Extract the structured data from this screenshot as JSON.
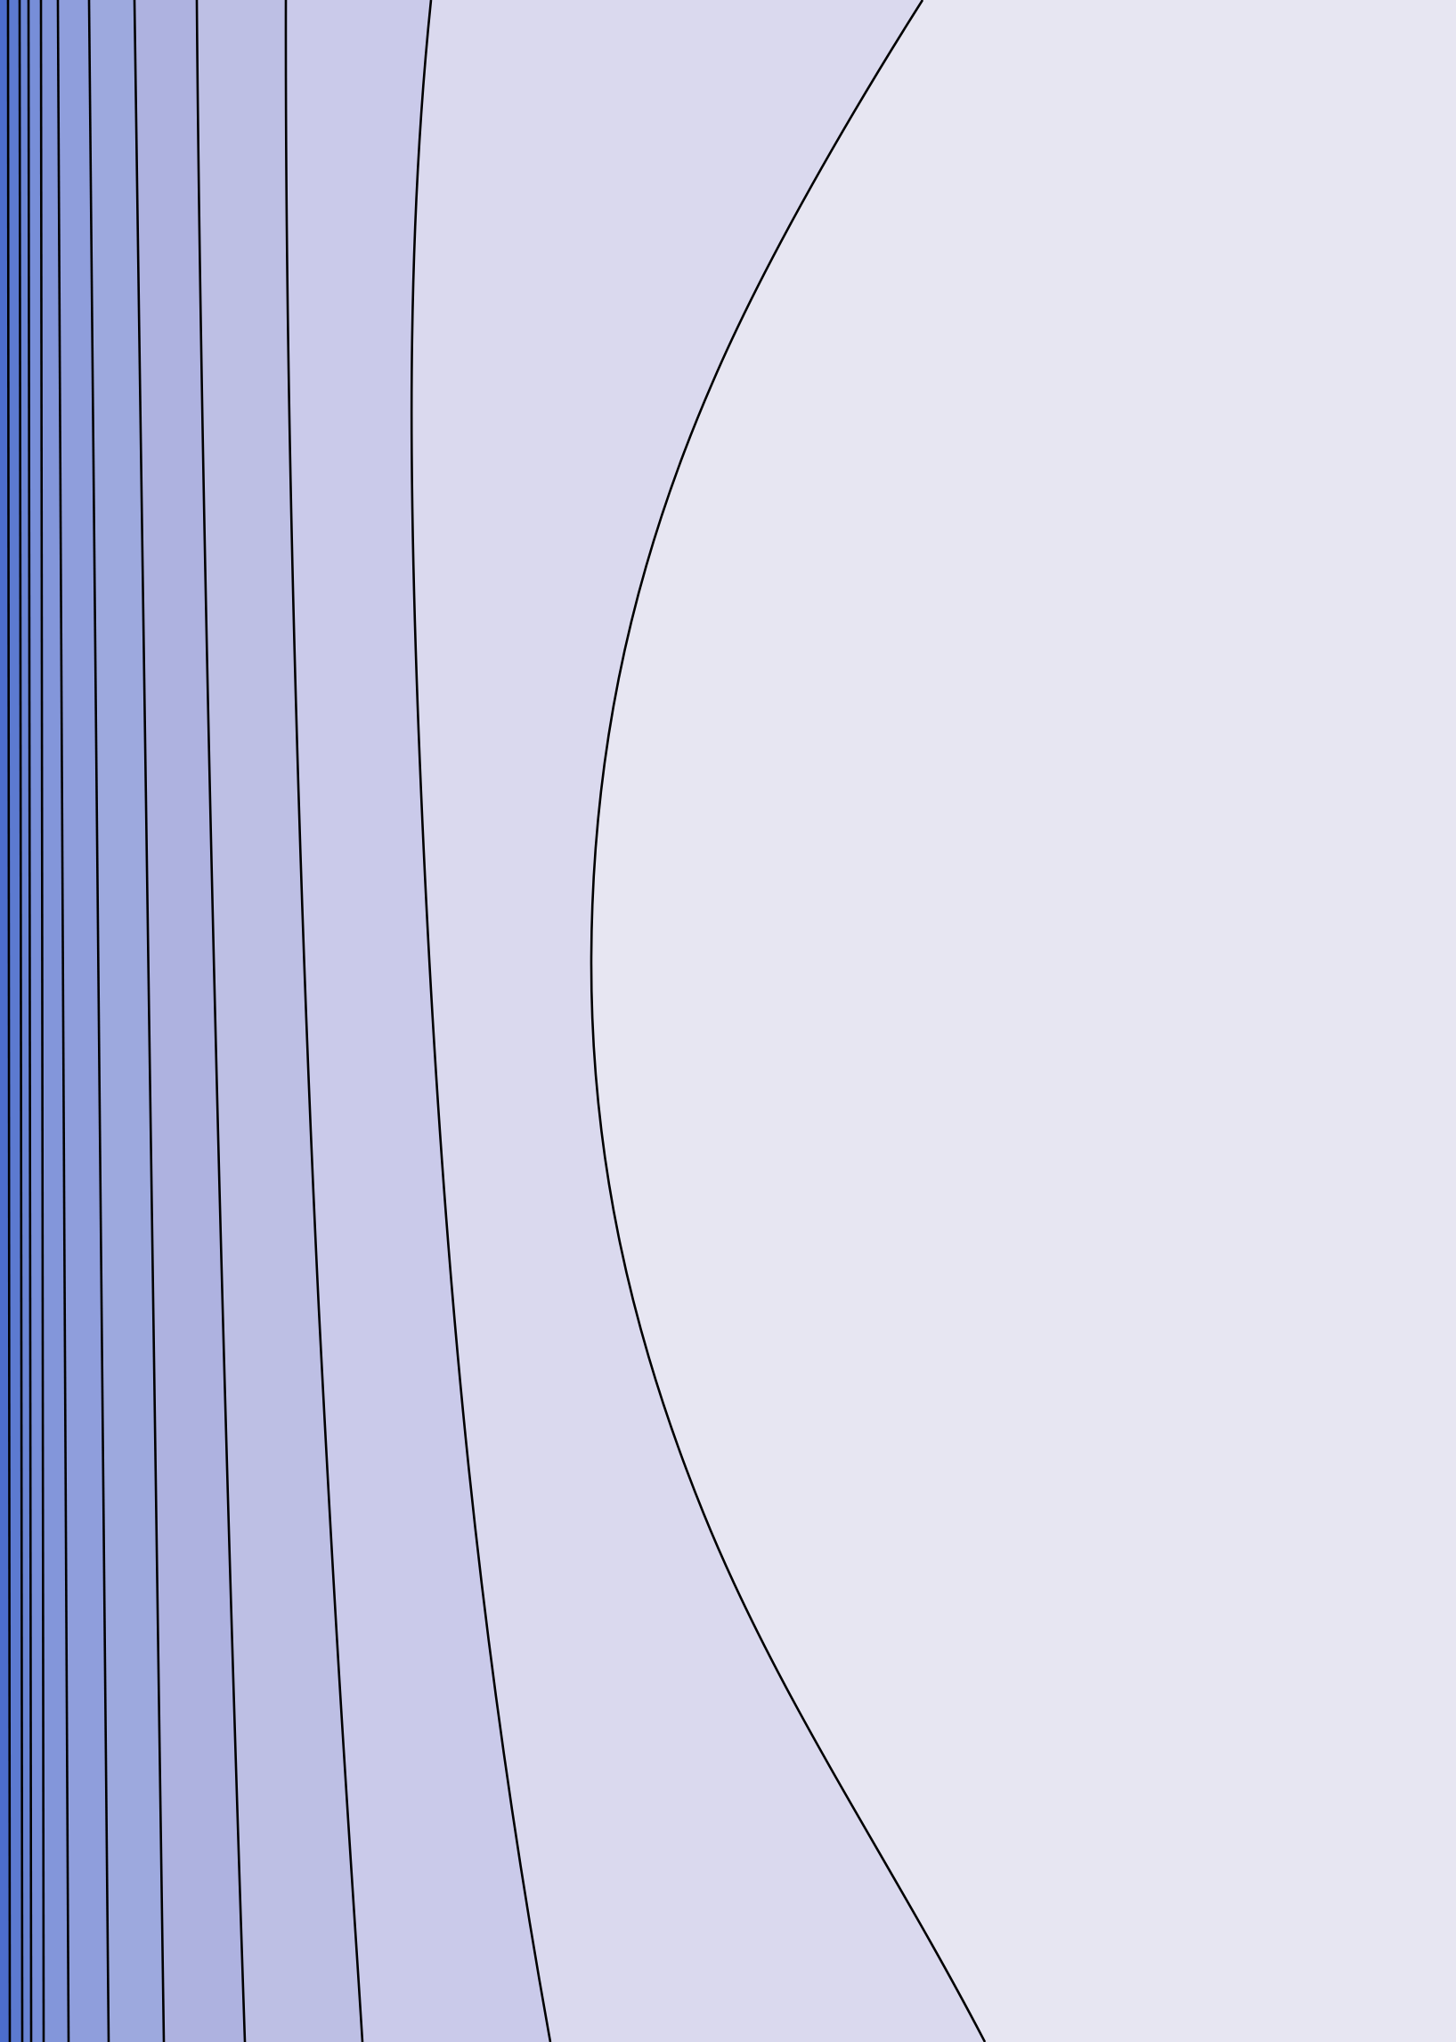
{
  "chart_data": {
    "type": "contour",
    "title": "",
    "xlabel": "",
    "ylabel": "",
    "axes_visible": false,
    "grid": false,
    "legend": "none",
    "colorbar": "none",
    "line_color": "#000000",
    "levels": [
      {
        "level": 1,
        "color": "#e7e6f2"
      },
      {
        "level": 2,
        "color": "#dad9ee"
      },
      {
        "level": 3,
        "color": "#cacaea"
      },
      {
        "level": 4,
        "color": "#bdbfe4"
      },
      {
        "level": 5,
        "color": "#aeb2e0"
      },
      {
        "level": 6,
        "color": "#9da9de"
      },
      {
        "level": 7,
        "color": "#8f9edc"
      },
      {
        "level": 8,
        "color": "#8396da"
      },
      {
        "level": 9,
        "color": "#778ed8"
      },
      {
        "level": 10,
        "color": "#6a85d4"
      },
      {
        "level": 11,
        "color": "#5c7ad0"
      },
      {
        "level": 12,
        "color": "#4c6dcc"
      }
    ]
  }
}
